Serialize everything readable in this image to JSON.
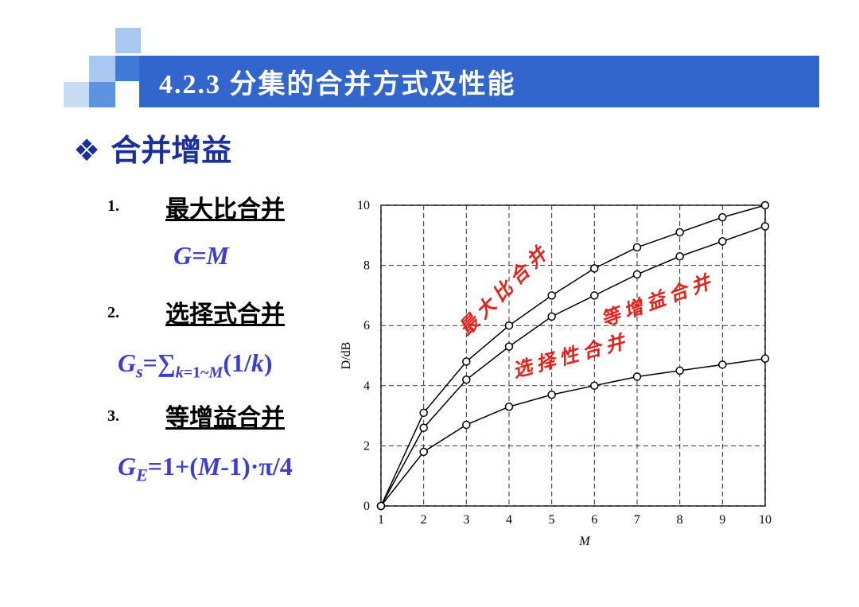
{
  "header": {
    "title": "4.2.3 分集的合并方式及性能"
  },
  "heading": "❖ 合并增益",
  "items": [
    {
      "number": "1.",
      "name": "最大比合并",
      "formula": [
        "G=M"
      ]
    },
    {
      "number": "2.",
      "name": "选择式合并",
      "formula": [
        "G",
        "s",
        "=∑",
        "k",
        "=1~",
        "M",
        "(1/",
        "k",
        ")"
      ]
    },
    {
      "number": "3.",
      "name": "等增益合并",
      "formula": [
        "G",
        "E",
        "=1+(",
        "M",
        "-1)·π/4"
      ]
    }
  ],
  "chart_data": {
    "type": "line",
    "x_label": "M",
    "y_label": "D/dB",
    "x": [
      1,
      2,
      3,
      4,
      5,
      6,
      7,
      8,
      9,
      10
    ],
    "series": [
      {
        "name": "最大比合并",
        "color": "#000000",
        "values": [
          0,
          3.1,
          4.8,
          6.0,
          7.0,
          7.9,
          8.6,
          9.1,
          9.6,
          10.0
        ]
      },
      {
        "name": "等增益合并",
        "color": "#000000",
        "values": [
          0,
          2.6,
          4.2,
          5.3,
          6.3,
          7.0,
          7.7,
          8.3,
          8.8,
          9.3
        ]
      },
      {
        "name": "选择性合并",
        "color": "#000000",
        "values": [
          0,
          1.8,
          2.7,
          3.3,
          3.7,
          4.0,
          4.3,
          4.5,
          4.7,
          4.9
        ]
      }
    ],
    "label_color": "#e8201a",
    "xlim": [
      1,
      10
    ],
    "ylim": [
      0,
      10
    ],
    "xticks": [
      1,
      2,
      3,
      4,
      5,
      6,
      7,
      8,
      9,
      10
    ],
    "yticks": [
      0,
      2,
      4,
      6,
      8,
      10
    ],
    "grid": true
  }
}
